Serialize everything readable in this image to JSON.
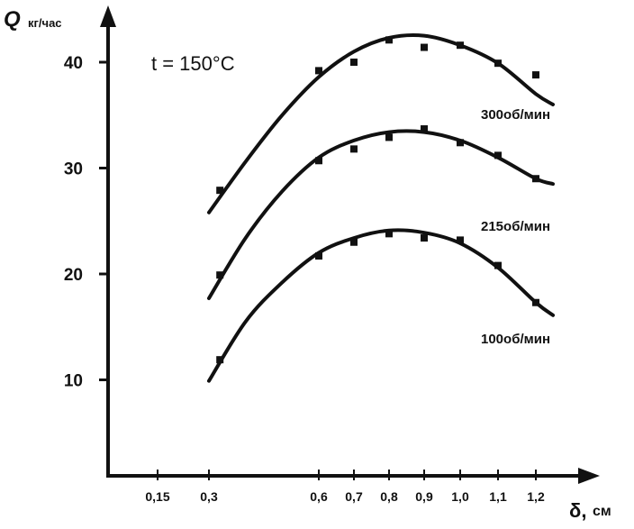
{
  "chart_data": {
    "type": "line",
    "title": "",
    "annotation": "t = 150°C",
    "xlabel": "δ, см",
    "ylabel": "Q, кг/час",
    "ylabel_symbol": "Q",
    "ylabel_unit": "кг/час",
    "xlabel_symbol": "δ,",
    "xlabel_unit": "см",
    "x_tick_labels": [
      "0,15",
      "0,3",
      "0,6",
      "0,7",
      "0,8",
      "0,9",
      "1,0",
      "1,1",
      "1,2"
    ],
    "x_tick_values": [
      0.15,
      0.3,
      0.6,
      0.7,
      0.8,
      0.9,
      1.0,
      1.1,
      1.2
    ],
    "y_tick_labels": [
      "10",
      "20",
      "30",
      "40"
    ],
    "y_tick_values": [
      10,
      20,
      30,
      40
    ],
    "grid": false,
    "legend": "labels next to curves",
    "colors": {
      "ink": "#111111",
      "background": "#ffffff"
    },
    "series": [
      {
        "name": "300об/мин",
        "curve_x": [
          0.3,
          0.4,
          0.5,
          0.6,
          0.7,
          0.8,
          0.9,
          1.0,
          1.1,
          1.2,
          1.25
        ],
        "curve_y": [
          25.8,
          30.6,
          35.0,
          38.6,
          41.0,
          42.3,
          42.5,
          41.6,
          39.9,
          37.0,
          36.0
        ],
        "points_x": [
          0.33,
          0.6,
          0.7,
          0.8,
          0.9,
          1.0,
          1.1,
          1.2
        ],
        "points_y": [
          27.9,
          39.2,
          40.0,
          42.1,
          41.4,
          41.6,
          39.9,
          38.8
        ]
      },
      {
        "name": "215об/мин",
        "curve_x": [
          0.3,
          0.4,
          0.5,
          0.6,
          0.7,
          0.8,
          0.9,
          1.0,
          1.1,
          1.2,
          1.25
        ],
        "curve_y": [
          17.7,
          23.4,
          27.8,
          31.0,
          32.6,
          33.4,
          33.4,
          32.6,
          31.0,
          29.0,
          28.5
        ],
        "points_x": [
          0.33,
          0.6,
          0.7,
          0.8,
          0.9,
          1.0,
          1.1,
          1.2
        ],
        "points_y": [
          19.9,
          30.7,
          31.8,
          32.9,
          33.7,
          32.4,
          31.2,
          29.0
        ]
      },
      {
        "name": "100об/мин",
        "curve_x": [
          0.3,
          0.4,
          0.5,
          0.6,
          0.7,
          0.8,
          0.9,
          1.0,
          1.1,
          1.2,
          1.25
        ],
        "curve_y": [
          9.9,
          15.5,
          19.2,
          22.0,
          23.4,
          24.1,
          23.9,
          22.9,
          20.6,
          17.3,
          16.1
        ],
        "points_x": [
          0.33,
          0.6,
          0.7,
          0.8,
          0.9,
          1.0,
          1.1,
          1.2
        ],
        "points_y": [
          11.9,
          21.7,
          23.0,
          23.8,
          23.4,
          23.2,
          20.8,
          17.3
        ]
      }
    ]
  }
}
